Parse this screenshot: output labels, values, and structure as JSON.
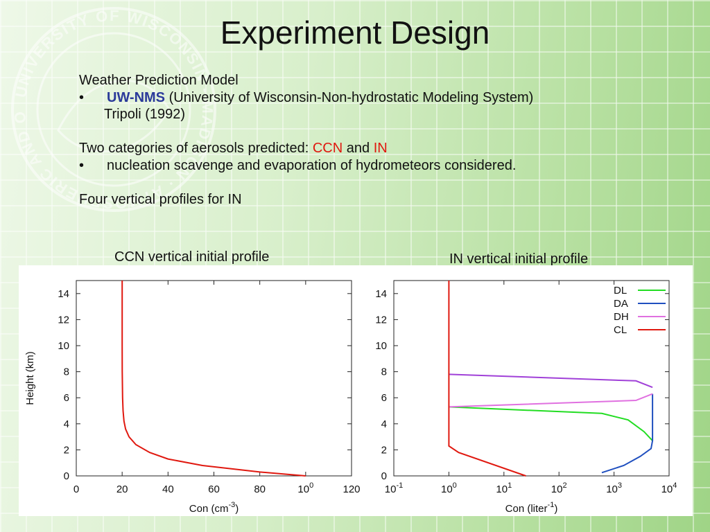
{
  "slide": {
    "title": "Experiment Design",
    "model_heading": "Weather Prediction Model",
    "bullet_char": "•",
    "model_name": "UW-NMS",
    "model_desc": "(University of Wisconsin-Non-hydrostatic Modeling System)",
    "model_ref": "Tripoli (1992)",
    "aerosol_prefix": "Two categories of aerosols predicted:",
    "aerosol_ccn": "CCN",
    "aerosol_and": "and",
    "aerosol_in": "IN",
    "aerosol_bullet": "nucleation scavenge and evaporation of hydrometeors considered.",
    "profiles_line": "Four vertical profiles for IN",
    "ccn_caption": "CCN vertical initial profile",
    "in_caption": "IN vertical initial profile",
    "logo_text": "UNIVERSITY OF WISCONSIN - MADISON · ATMOSPHERIC AND OCEANIC SCIENCES ·",
    "colors": {
      "title": "#111111",
      "model_name": "#2b3a9a",
      "highlight": "#e0180f",
      "background": "#c8e8b4"
    }
  },
  "chart_data": [
    {
      "type": "line",
      "xlabel": "Con (cm-3)",
      "ylabel": "Height (km)",
      "xlim": [
        0,
        120
      ],
      "ylim": [
        0,
        15
      ],
      "x_ticks": [
        "0",
        "20",
        "40",
        "60",
        "80",
        "100",
        "120"
      ],
      "y_ticks": [
        "0",
        "2",
        "4",
        "6",
        "8",
        "10",
        "12",
        "14"
      ],
      "series": [
        {
          "color": "#e0180f",
          "x": [
            100,
            80,
            55,
            40,
            32,
            26,
            23,
            21.5,
            20.8,
            20.4,
            20.2,
            20.05,
            20,
            20
          ],
          "y": [
            0,
            0.3,
            0.8,
            1.3,
            1.8,
            2.4,
            3.0,
            3.6,
            4.2,
            5.0,
            6.0,
            8.0,
            10,
            15
          ]
        }
      ]
    },
    {
      "type": "line",
      "xlabel": "Con (liter-1)",
      "xscale": "log",
      "xlim": [
        0.1,
        10000
      ],
      "ylim": [
        0,
        15
      ],
      "x_ticks": [
        "10-1",
        "100",
        "101",
        "102",
        "103",
        "104"
      ],
      "y_ticks": [
        "0",
        "2",
        "4",
        "6",
        "8",
        "10",
        "12",
        "14"
      ],
      "legend_position": "top-right",
      "series": [
        {
          "name": "DL",
          "color": "#22dd22",
          "x": [
            1,
            600,
            1800,
            3500,
            5000
          ],
          "y": [
            5.3,
            4.8,
            4.3,
            3.4,
            2.7
          ]
        },
        {
          "name": "DA",
          "color": "#1f4fbf",
          "x": [
            600,
            1500,
            3000,
            4700,
            5000,
            5000,
            5000
          ],
          "y": [
            0.25,
            0.8,
            1.5,
            2.1,
            2.7,
            5.5,
            6.3
          ]
        },
        {
          "name": "DH",
          "color": "#e070e0",
          "x": [
            1,
            2500,
            5000
          ],
          "y": [
            5.3,
            5.8,
            6.3
          ]
        },
        {
          "name": "",
          "color": "#a040d8",
          "x": [
            1,
            2500,
            5000
          ],
          "y": [
            7.8,
            7.3,
            6.8
          ]
        },
        {
          "name": "CL",
          "color": "#e0180f",
          "x": [
            25,
            1.5,
            1,
            1,
            1
          ],
          "y": [
            0,
            1.8,
            2.3,
            7.8,
            15
          ]
        }
      ]
    }
  ]
}
